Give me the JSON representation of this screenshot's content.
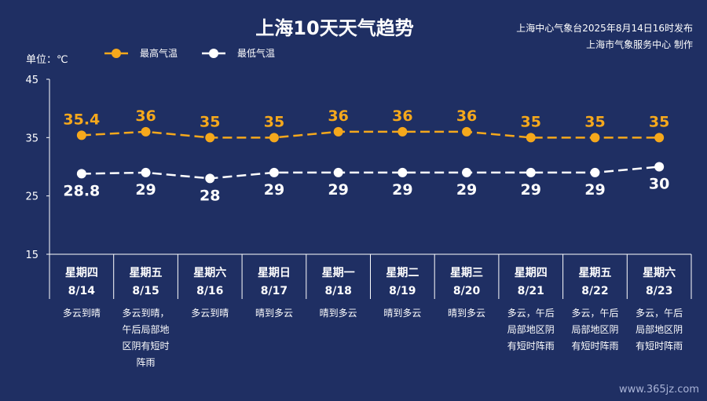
{
  "header": {
    "title": "上海10天天气趋势",
    "publisher_line1": "上海中心气象台2025年8月14日16时发布",
    "publisher_line2": "上海市气象服务中心 制作"
  },
  "colors": {
    "background": "#1f2f63",
    "high": "#f5a81c",
    "low": "#ffffff"
  },
  "watermark": "www.365jz.com",
  "chart_data": {
    "type": "line",
    "ylabel": "单位：℃",
    "ylim": [
      15,
      45
    ],
    "yticks": [
      "15",
      "25",
      "35",
      "45"
    ],
    "legend_position": "top-left",
    "x": [
      "8/14",
      "8/15",
      "8/16",
      "8/17",
      "8/18",
      "8/19",
      "8/20",
      "8/21",
      "8/22",
      "8/23"
    ],
    "weekdays": [
      "星期四",
      "星期五",
      "星期六",
      "星期日",
      "星期一",
      "星期二",
      "星期三",
      "星期四",
      "星期五",
      "星期六"
    ],
    "weather": [
      [
        "多云到晴"
      ],
      [
        "多云到晴，",
        "午后局部地",
        "区阴有短时",
        "阵雨"
      ],
      [
        "多云到晴"
      ],
      [
        "晴到多云"
      ],
      [
        "晴到多云"
      ],
      [
        "晴到多云"
      ],
      [
        "晴到多云"
      ],
      [
        "多云，午后",
        "局部地区阴",
        "有短时阵雨"
      ],
      [
        "多云，午后",
        "局部地区阴",
        "有短时阵雨"
      ],
      [
        "多云，午后",
        "局部地区阴",
        "有短时阵雨"
      ]
    ],
    "series": [
      {
        "name": "最高气温",
        "values": [
          35.4,
          36,
          35,
          35,
          36,
          36,
          36,
          35,
          35,
          35
        ],
        "labels": [
          "35.4",
          "36",
          "35",
          "35",
          "36",
          "36",
          "36",
          "35",
          "35",
          "35"
        ]
      },
      {
        "name": "最低气温",
        "values": [
          28.8,
          29,
          28,
          29,
          29,
          29,
          29,
          29,
          29,
          30
        ],
        "labels": [
          "28.8",
          "29",
          "28",
          "29",
          "29",
          "29",
          "29",
          "29",
          "29",
          "30"
        ]
      }
    ]
  }
}
